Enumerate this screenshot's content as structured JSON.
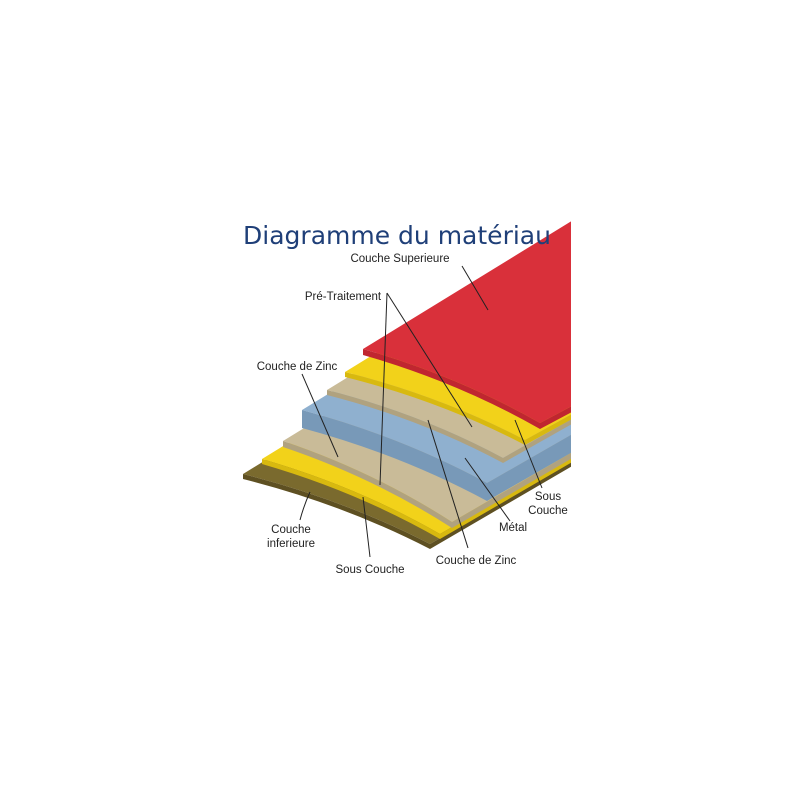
{
  "title": "Diagramme du matériau",
  "labels": {
    "top_coat": "Couche Superieure",
    "pretreatment": "Pré-Traitement",
    "zinc_left": "Couche de Zinc",
    "primer_right_1": "Sous",
    "primer_right_2": "Couche",
    "metal": "Métal",
    "zinc_bottom": "Couche de Zinc",
    "primer_bottom": "Sous Couche",
    "back_coat_1": "Couche",
    "back_coat_2": "inferieure"
  },
  "colors": {
    "title": "#1f3f78",
    "top_coat": "#d9303a",
    "primer": "#f2d21a",
    "pretreatment": "#c9bb98",
    "metal": "#8fb0cf",
    "back_coat": "#7a6a2e"
  }
}
